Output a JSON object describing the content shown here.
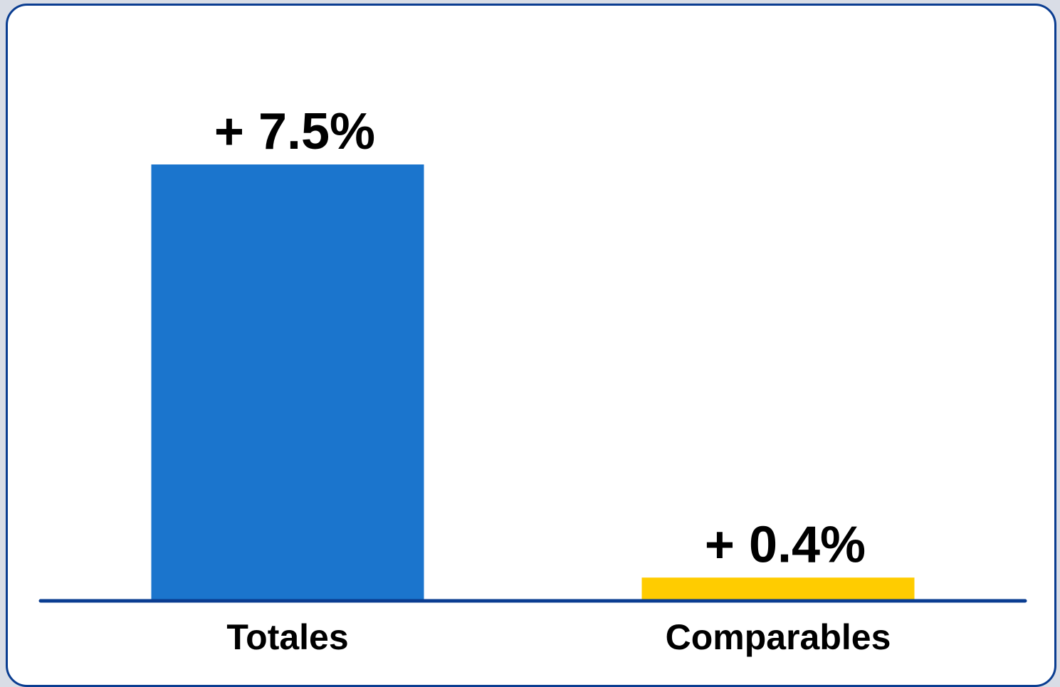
{
  "chart_data": {
    "type": "bar",
    "categories": [
      "Totales",
      "Comparables"
    ],
    "values": [
      7.5,
      0.4
    ],
    "data_labels": [
      "+ 7.5%",
      "+ 0.4%"
    ],
    "colors": [
      "#1b75cd",
      "#ffcc00"
    ],
    "axis_color": "#0a3d91",
    "ylim": [
      0,
      7.5
    ],
    "grid": false,
    "title": "",
    "xlabel": "",
    "ylabel": ""
  }
}
